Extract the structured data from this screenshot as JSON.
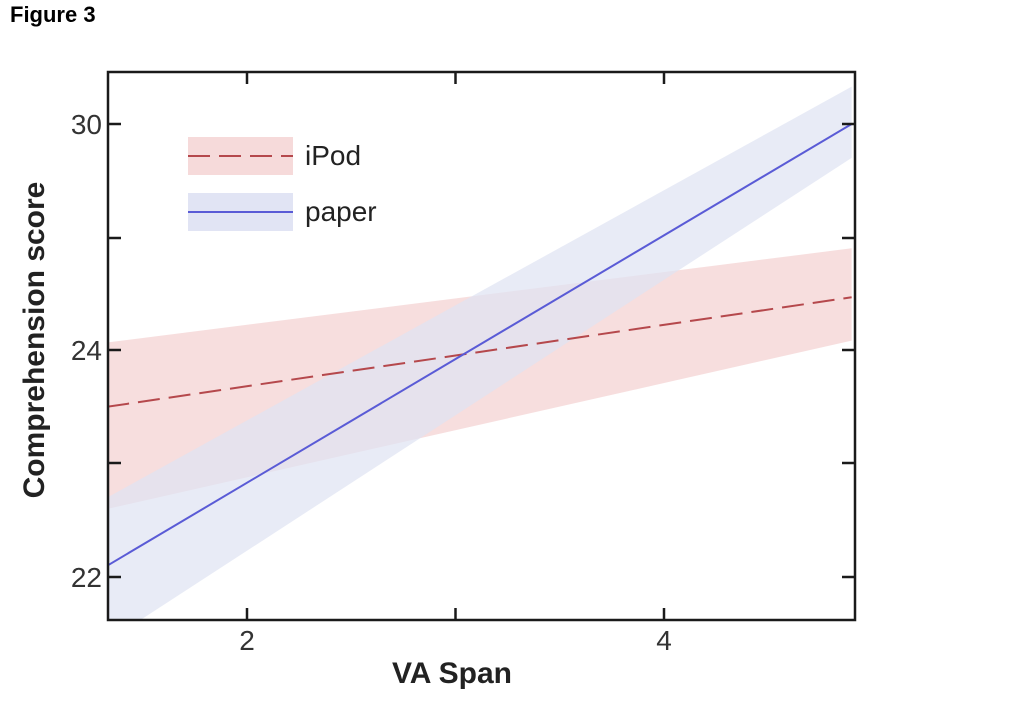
{
  "figure_label": "Figure 3",
  "chart_data": {
    "type": "line",
    "xlabel": "VA Span",
    "ylabel": "Comprehension score",
    "xlim": [
      1.33,
      4.9
    ],
    "ylim": [
      21.6,
      30.5
    ],
    "y_scale_note": "axis is visually non-linear; tick labels 22, 24, 30",
    "x_ticks": [
      {
        "value": 2,
        "label": "2"
      },
      {
        "value": 4,
        "label": "4"
      }
    ],
    "y_ticks": [
      {
        "value": 22,
        "label": "22"
      },
      {
        "value": 24,
        "label": "24"
      },
      {
        "value": 30,
        "label": "30"
      }
    ],
    "grid": false,
    "legend_position": "top-left",
    "series": [
      {
        "name": "iPod",
        "style": "dashed",
        "color": "#b5484c",
        "band_color": "#f6d8d8",
        "x": [
          1.33,
          4.9
        ],
        "y": [
          23.5,
          25.4
        ],
        "ci_lower": [
          22.6,
          24.25
        ],
        "ci_upper": [
          24.2,
          26.7
        ]
      },
      {
        "name": "paper",
        "style": "solid",
        "color": "#5a5bd6",
        "band_color": "#dfe3f3",
        "x": [
          1.33,
          4.9
        ],
        "y": [
          22.1,
          30.0
        ],
        "ci_lower": [
          21.4,
          29.1
        ],
        "ci_upper": [
          22.7,
          31.0
        ]
      }
    ]
  }
}
